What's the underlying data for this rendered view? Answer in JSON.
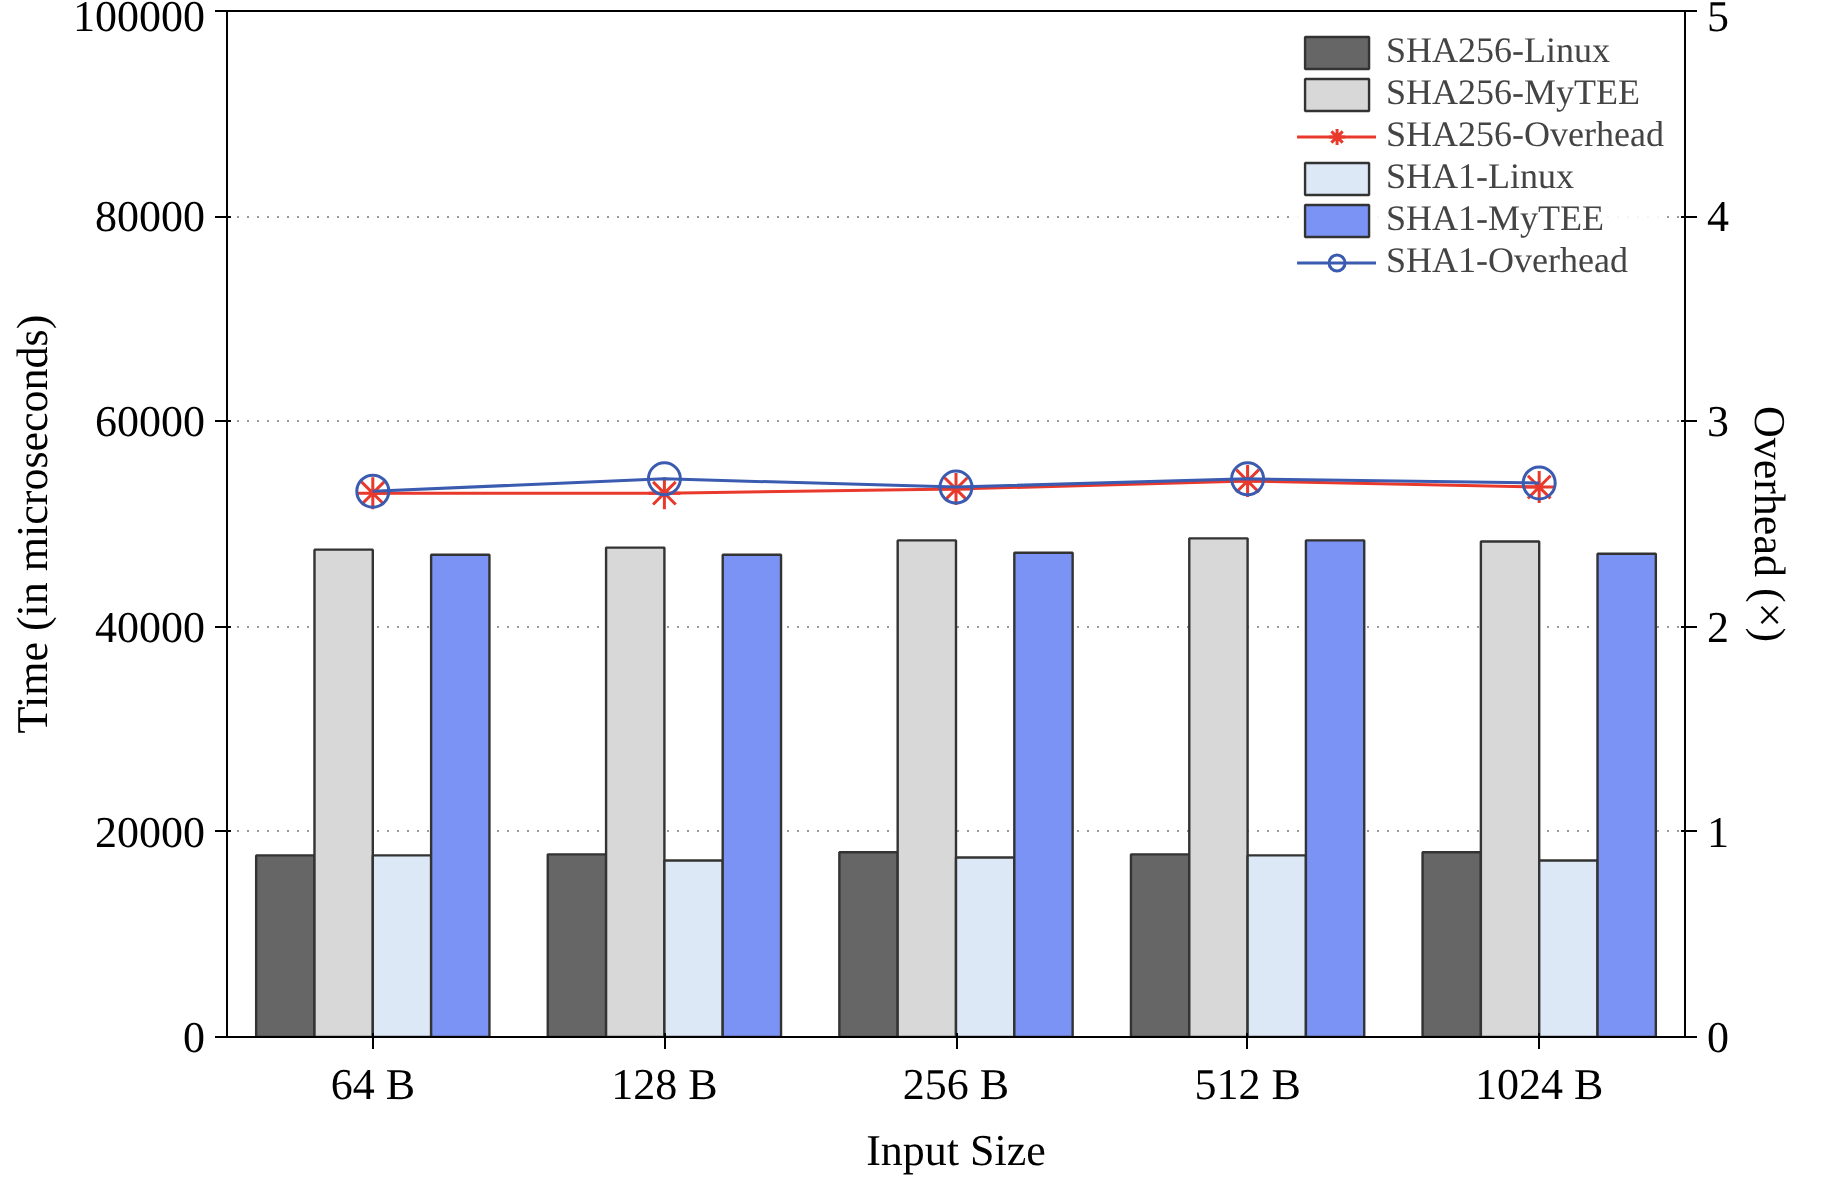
{
  "chart_data": {
    "type": "bar",
    "xlabel": "Input Size",
    "ylabel": "Time (in microseconds)",
    "y2label": "Overhead (×)",
    "categories": [
      "64 B",
      "128 B",
      "256 B",
      "512 B",
      "1024 B"
    ],
    "ylim": [
      0,
      100000
    ],
    "yticks": [
      0,
      20000,
      40000,
      60000,
      80000,
      100000
    ],
    "y2lim": [
      0,
      5
    ],
    "y2ticks": [
      0,
      1,
      2,
      3,
      4,
      5
    ],
    "grid": "y",
    "legend": "top right",
    "series": [
      {
        "name": "SHA256-Linux",
        "color": "#666666",
        "values": [
          17700,
          17800,
          18000,
          17800,
          18000
        ]
      },
      {
        "name": "SHA256-MyTEE",
        "color": "#d8d8d8",
        "values": [
          47500,
          47700,
          48400,
          48600,
          48300
        ]
      },
      {
        "name": "SHA256-Overhead",
        "type": "line",
        "axis": "y2",
        "marker": "cross",
        "color": "#e8392c",
        "values": [
          2.65,
          2.65,
          2.67,
          2.71,
          2.68
        ]
      },
      {
        "name": "SHA1-Linux",
        "color": "#dde8f6",
        "values": [
          17700,
          17200,
          17500,
          17700,
          17200
        ]
      },
      {
        "name": "SHA1-MyTEE",
        "color": "#7b93f5",
        "values": [
          47000,
          47000,
          47200,
          48400,
          47100
        ]
      },
      {
        "name": "SHA1-Overhead",
        "type": "line",
        "axis": "y2",
        "marker": "circle",
        "color": "#3a5bb0",
        "values": [
          2.66,
          2.72,
          2.68,
          2.72,
          2.7
        ]
      }
    ]
  }
}
